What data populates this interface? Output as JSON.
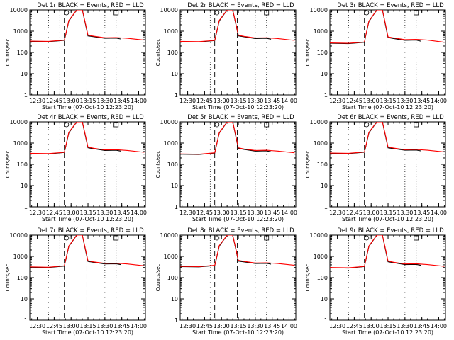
{
  "colors": {
    "events": "#000000",
    "lld": "#ff0000",
    "frame": "#000000",
    "background": "#ffffff"
  },
  "chart_data": [
    {
      "type": "line",
      "title": "Det 1r BLACK = Events, RED = LLD",
      "xlabel": "Start Time (07-Oct-10 12:23:20)",
      "ylabel": "Counts/sec",
      "log_y": true,
      "xlim": [
        "12:23:20",
        "14:06:00"
      ],
      "ylim": [
        1,
        10000
      ],
      "x_ticks": [
        "12:30",
        "12:45",
        "13:00",
        "13:15",
        "13:30",
        "13:45",
        "14:00"
      ],
      "y_ticks": [
        "1",
        "10",
        "100",
        "1000",
        "10000"
      ],
      "dotted_times": [
        "12:40",
        "12:50",
        "13:30",
        "13:40"
      ],
      "dashed_times": [
        "12:54",
        "13:14"
      ],
      "markers": {
        "circle": "12:56",
        "square": "13:40"
      },
      "series": [
        {
          "color": "black",
          "x": [
            "12:23",
            "12:40",
            "12:54",
            "12:55",
            "12:58",
            "13:05",
            "13:10",
            "13:13",
            "13:15",
            "13:20",
            "13:30",
            "13:40",
            "13:44"
          ],
          "y": [
            330,
            320,
            370,
            600,
            3000,
            10000,
            10000,
            1800,
            600,
            550,
            460,
            470,
            430
          ]
        },
        {
          "color": "red",
          "x": [
            "12:23",
            "12:40",
            "12:54",
            "12:55",
            "12:58",
            "13:05",
            "13:10",
            "13:13",
            "13:15",
            "13:20",
            "13:30",
            "13:40",
            "13:50",
            "14:05"
          ],
          "y": [
            340,
            330,
            380,
            620,
            3200,
            10000,
            10000,
            2000,
            650,
            580,
            490,
            500,
            460,
            380
          ]
        }
      ]
    },
    {
      "type": "line",
      "title": "Det 2r BLACK = Events, RED = LLD",
      "xlabel": "Start Time (07-Oct-10 12:23:20)",
      "ylabel": "Counts/sec",
      "log_y": true,
      "xlim": [
        "12:23:20",
        "14:06:00"
      ],
      "ylim": [
        1,
        10000
      ],
      "x_ticks": [
        "12:30",
        "12:45",
        "13:00",
        "13:15",
        "13:30",
        "13:45",
        "14:00"
      ],
      "y_ticks": [
        "1",
        "10",
        "100",
        "1000",
        "10000"
      ],
      "dotted_times": [
        "12:40",
        "12:50",
        "13:30",
        "13:40"
      ],
      "dashed_times": [
        "12:54",
        "13:14"
      ],
      "markers": {
        "circle": "12:56",
        "square": "13:40"
      },
      "series": [
        {
          "color": "black",
          "x": [
            "12:23",
            "12:40",
            "12:54",
            "12:55",
            "12:58",
            "13:05",
            "13:10",
            "13:13",
            "13:15",
            "13:20",
            "13:30",
            "13:40",
            "13:44"
          ],
          "y": [
            320,
            310,
            360,
            600,
            3000,
            10000,
            10000,
            1800,
            600,
            540,
            450,
            460,
            420
          ]
        },
        {
          "color": "red",
          "x": [
            "12:23",
            "12:40",
            "12:54",
            "12:55",
            "12:58",
            "13:05",
            "13:10",
            "13:13",
            "13:15",
            "13:20",
            "13:30",
            "13:40",
            "13:50",
            "14:05"
          ],
          "y": [
            330,
            320,
            370,
            620,
            3200,
            10000,
            10000,
            2000,
            640,
            570,
            480,
            490,
            450,
            370
          ]
        }
      ]
    },
    {
      "type": "line",
      "title": "Det 3r BLACK = Events, RED = LLD",
      "xlabel": "Start Time (07-Oct-10 12:23:20)",
      "ylabel": "Counts/sec",
      "log_y": true,
      "xlim": [
        "12:23:20",
        "14:06:00"
      ],
      "ylim": [
        1,
        10000
      ],
      "x_ticks": [
        "12:30",
        "12:45",
        "13:00",
        "13:15",
        "13:30",
        "13:45",
        "14:00"
      ],
      "y_ticks": [
        "1",
        "10",
        "100",
        "1000",
        "10000"
      ],
      "dotted_times": [
        "12:40",
        "12:50",
        "13:30",
        "13:40"
      ],
      "dashed_times": [
        "12:54",
        "13:14"
      ],
      "markers": {
        "circle": "12:56",
        "square": "13:40"
      },
      "series": [
        {
          "color": "black",
          "x": [
            "12:23",
            "12:40",
            "12:54",
            "12:55",
            "12:58",
            "13:05",
            "13:10",
            "13:13",
            "13:15",
            "13:20",
            "13:30",
            "13:40",
            "13:44"
          ],
          "y": [
            270,
            260,
            300,
            550,
            2800,
            10000,
            10000,
            1600,
            500,
            450,
            370,
            380,
            340
          ]
        },
        {
          "color": "red",
          "x": [
            "12:23",
            "12:40",
            "12:54",
            "12:55",
            "12:58",
            "13:05",
            "13:10",
            "13:13",
            "13:15",
            "13:20",
            "13:30",
            "13:40",
            "13:50",
            "14:05"
          ],
          "y": [
            280,
            270,
            310,
            570,
            3000,
            10000,
            10000,
            1800,
            540,
            480,
            400,
            410,
            380,
            300
          ]
        }
      ]
    },
    {
      "type": "line",
      "title": "Det 4r BLACK = Events, RED = LLD",
      "xlabel": "Start Time (07-Oct-10 12:23:20)",
      "ylabel": "Counts/sec",
      "log_y": true,
      "xlim": [
        "12:23:20",
        "14:06:00"
      ],
      "ylim": [
        1,
        10000
      ],
      "x_ticks": [
        "12:30",
        "12:45",
        "13:00",
        "13:15",
        "13:30",
        "13:45",
        "14:00"
      ],
      "y_ticks": [
        "1",
        "10",
        "100",
        "1000",
        "10000"
      ],
      "dotted_times": [
        "12:40",
        "12:50",
        "13:30",
        "13:40"
      ],
      "dashed_times": [
        "12:54",
        "13:14"
      ],
      "markers": {
        "circle": "12:56",
        "square": "13:40"
      },
      "series": [
        {
          "color": "black",
          "x": [
            "12:23",
            "12:40",
            "12:54",
            "12:55",
            "12:58",
            "13:05",
            "13:10",
            "13:13",
            "13:15",
            "13:20",
            "13:30",
            "13:40",
            "13:44"
          ],
          "y": [
            320,
            310,
            360,
            600,
            3000,
            10000,
            10000,
            1800,
            600,
            540,
            450,
            460,
            420
          ]
        },
        {
          "color": "red",
          "x": [
            "12:23",
            "12:40",
            "12:54",
            "12:55",
            "12:58",
            "13:05",
            "13:10",
            "13:13",
            "13:15",
            "13:20",
            "13:30",
            "13:40",
            "13:50",
            "14:05"
          ],
          "y": [
            330,
            320,
            370,
            620,
            3200,
            10000,
            10000,
            2000,
            640,
            570,
            480,
            490,
            450,
            370
          ]
        }
      ]
    },
    {
      "type": "line",
      "title": "Det 5r BLACK = Events, RED = LLD",
      "xlabel": "Start Time (07-Oct-10 12:23:20)",
      "ylabel": "Counts/sec",
      "log_y": true,
      "xlim": [
        "12:23:20",
        "14:06:00"
      ],
      "ylim": [
        1,
        10000
      ],
      "x_ticks": [
        "12:30",
        "12:45",
        "13:00",
        "13:15",
        "13:30",
        "13:45",
        "14:00"
      ],
      "y_ticks": [
        "1",
        "10",
        "100",
        "1000",
        "10000"
      ],
      "dotted_times": [
        "12:40",
        "12:50",
        "13:30",
        "13:40"
      ],
      "dashed_times": [
        "12:54",
        "13:14"
      ],
      "markers": {
        "circle": "12:56",
        "square": "13:40"
      },
      "series": [
        {
          "color": "black",
          "x": [
            "12:23",
            "12:40",
            "12:54",
            "12:55",
            "12:58",
            "13:05",
            "13:10",
            "13:13",
            "13:15",
            "13:20",
            "13:30",
            "13:40",
            "13:44"
          ],
          "y": [
            300,
            290,
            340,
            580,
            2900,
            10000,
            10000,
            1700,
            560,
            500,
            420,
            430,
            390
          ]
        },
        {
          "color": "red",
          "x": [
            "12:23",
            "12:40",
            "12:54",
            "12:55",
            "12:58",
            "13:05",
            "13:10",
            "13:13",
            "13:15",
            "13:20",
            "13:30",
            "13:40",
            "13:50",
            "14:05"
          ],
          "y": [
            310,
            300,
            350,
            600,
            3100,
            10000,
            10000,
            1900,
            600,
            530,
            450,
            460,
            420,
            350
          ]
        }
      ]
    },
    {
      "type": "line",
      "title": "Det 6r BLACK = Events, RED = LLD",
      "xlabel": "Start Time (07-Oct-10 12:23:20)",
      "ylabel": "Counts/sec",
      "log_y": true,
      "xlim": [
        "12:23:20",
        "14:06:00"
      ],
      "ylim": [
        1,
        10000
      ],
      "x_ticks": [
        "12:30",
        "12:45",
        "13:00",
        "13:15",
        "13:30",
        "13:45",
        "14:00"
      ],
      "y_ticks": [
        "1",
        "10",
        "100",
        "1000",
        "10000"
      ],
      "dotted_times": [
        "12:40",
        "12:50",
        "13:30",
        "13:40"
      ],
      "dashed_times": [
        "12:54",
        "13:14"
      ],
      "markers": {
        "circle": "12:56",
        "square": "13:40"
      },
      "series": [
        {
          "color": "black",
          "x": [
            "12:23",
            "12:40",
            "12:54",
            "12:55",
            "12:58",
            "13:05",
            "13:10",
            "13:13",
            "13:15",
            "13:20",
            "13:30",
            "13:40",
            "13:44"
          ],
          "y": [
            330,
            320,
            370,
            600,
            3000,
            10000,
            10000,
            1800,
            600,
            550,
            460,
            470,
            430
          ]
        },
        {
          "color": "red",
          "x": [
            "12:23",
            "12:40",
            "12:54",
            "12:55",
            "12:58",
            "13:05",
            "13:10",
            "13:13",
            "13:15",
            "13:20",
            "13:30",
            "13:40",
            "13:50",
            "14:05"
          ],
          "y": [
            340,
            330,
            380,
            620,
            3200,
            10000,
            10000,
            2000,
            650,
            580,
            490,
            500,
            460,
            380
          ]
        }
      ]
    },
    {
      "type": "line",
      "title": "Det 7r BLACK = Events, RED = LLD",
      "xlabel": "Start Time (07-Oct-10 12:23:20)",
      "ylabel": "Counts/sec",
      "log_y": true,
      "xlim": [
        "12:23:20",
        "14:06:00"
      ],
      "ylim": [
        1,
        10000
      ],
      "x_ticks": [
        "12:30",
        "12:45",
        "13:00",
        "13:15",
        "13:30",
        "13:45",
        "14:00"
      ],
      "y_ticks": [
        "1",
        "10",
        "100",
        "1000",
        "10000"
      ],
      "dotted_times": [
        "12:40",
        "12:50",
        "13:30",
        "13:40"
      ],
      "dashed_times": [
        "12:54",
        "13:14"
      ],
      "markers": {
        "circle": "12:56",
        "square": "13:40"
      },
      "series": [
        {
          "color": "black",
          "x": [
            "12:23",
            "12:40",
            "12:54",
            "12:55",
            "12:58",
            "13:05",
            "13:10",
            "13:13",
            "13:15",
            "13:20",
            "13:30",
            "13:40",
            "13:44"
          ],
          "y": [
            310,
            300,
            350,
            590,
            2900,
            10000,
            10000,
            1700,
            580,
            520,
            440,
            450,
            410
          ]
        },
        {
          "color": "red",
          "x": [
            "12:23",
            "12:40",
            "12:54",
            "12:55",
            "12:58",
            "13:05",
            "13:10",
            "13:13",
            "13:15",
            "13:20",
            "13:30",
            "13:40",
            "13:50",
            "14:05"
          ],
          "y": [
            320,
            310,
            360,
            610,
            3100,
            10000,
            10000,
            1900,
            620,
            550,
            470,
            480,
            440,
            360
          ]
        }
      ]
    },
    {
      "type": "line",
      "title": "Det 8r BLACK = Events, RED = LLD",
      "xlabel": "Start Time (07-Oct-10 12:23:20)",
      "ylabel": "Counts/sec",
      "log_y": true,
      "xlim": [
        "12:23:20",
        "14:06:00"
      ],
      "ylim": [
        1,
        10000
      ],
      "x_ticks": [
        "12:30",
        "12:45",
        "13:00",
        "13:15",
        "13:30",
        "13:45",
        "14:00"
      ],
      "y_ticks": [
        "1",
        "10",
        "100",
        "1000",
        "10000"
      ],
      "dotted_times": [
        "12:40",
        "12:50",
        "13:30",
        "13:40"
      ],
      "dashed_times": [
        "12:54",
        "13:14"
      ],
      "markers": {
        "circle": "12:56",
        "square": "13:40"
      },
      "series": [
        {
          "color": "black",
          "x": [
            "12:23",
            "12:40",
            "12:54",
            "12:55",
            "12:58",
            "13:05",
            "13:10",
            "13:13",
            "13:15",
            "13:20",
            "13:30",
            "13:40",
            "13:44"
          ],
          "y": [
            330,
            320,
            370,
            600,
            3000,
            10000,
            10000,
            1800,
            600,
            550,
            460,
            470,
            430
          ]
        },
        {
          "color": "red",
          "x": [
            "12:23",
            "12:40",
            "12:54",
            "12:55",
            "12:58",
            "13:05",
            "13:10",
            "13:13",
            "13:15",
            "13:20",
            "13:30",
            "13:40",
            "13:50",
            "14:05"
          ],
          "y": [
            340,
            330,
            380,
            620,
            3200,
            10000,
            10000,
            2000,
            650,
            580,
            490,
            500,
            460,
            380
          ]
        }
      ]
    },
    {
      "type": "line",
      "title": "Det 9r BLACK = Events, RED = LLD",
      "xlabel": "Start Time (07-Oct-10 12:23:20)",
      "ylabel": "Counts/sec",
      "log_y": true,
      "xlim": [
        "12:23:20",
        "14:06:00"
      ],
      "ylim": [
        1,
        10000
      ],
      "x_ticks": [
        "12:30",
        "12:45",
        "13:00",
        "13:15",
        "13:30",
        "13:45",
        "14:00"
      ],
      "y_ticks": [
        "1",
        "10",
        "100",
        "1000",
        "10000"
      ],
      "dotted_times": [
        "12:40",
        "12:50",
        "13:30",
        "13:40"
      ],
      "dashed_times": [
        "12:54",
        "13:14"
      ],
      "markers": {
        "circle": "12:56",
        "square": "13:40"
      },
      "series": [
        {
          "color": "black",
          "x": [
            "12:23",
            "12:40",
            "12:54",
            "12:55",
            "12:58",
            "13:05",
            "13:10",
            "13:13",
            "13:15",
            "13:20",
            "13:30",
            "13:40",
            "13:44"
          ],
          "y": [
            290,
            280,
            330,
            570,
            2900,
            10000,
            10000,
            1700,
            560,
            500,
            410,
            420,
            380
          ]
        },
        {
          "color": "red",
          "x": [
            "12:23",
            "12:40",
            "12:54",
            "12:55",
            "12:58",
            "13:05",
            "13:10",
            "13:13",
            "13:15",
            "13:20",
            "13:30",
            "13:40",
            "13:50",
            "14:05"
          ],
          "y": [
            300,
            290,
            340,
            590,
            3100,
            10000,
            10000,
            1900,
            600,
            530,
            440,
            450,
            410,
            340
          ]
        }
      ]
    }
  ]
}
